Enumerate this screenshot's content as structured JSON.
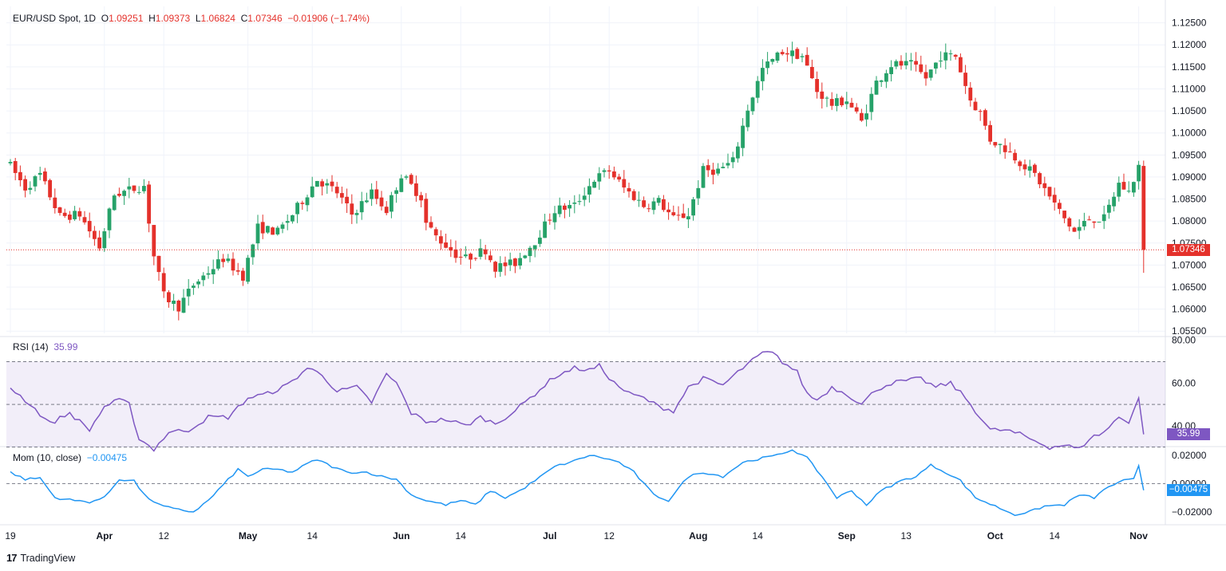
{
  "header": {
    "symbol": "EUR/USD Spot, 1D",
    "o_label": "O",
    "o_value": "1.09251",
    "h_label": "H",
    "h_value": "1.09373",
    "l_label": "L",
    "l_value": "1.06824",
    "c_label": "C",
    "c_value": "1.07346",
    "change": "−0.01906 (−1.74%)"
  },
  "rsi_legend": {
    "label": "RSI (14)",
    "value": "35.99"
  },
  "mom_legend": {
    "label": "Mom (10, close)",
    "value": "−0.00475"
  },
  "badges": {
    "price": "1.07346",
    "rsi": "35.99",
    "mom": "−0.00475"
  },
  "brand": {
    "logo": "17",
    "name": "TradingView"
  },
  "colors": {
    "up": "#26a269",
    "down": "#e4312b",
    "rsi": "#7e57c2",
    "mom": "#2196f3",
    "grid": "#f0f3fa"
  },
  "chart_data": [
    {
      "type": "candlestick",
      "title": "EUR/USD Spot, 1D",
      "x_tick_labels": [
        "19",
        "Apr",
        "12",
        "May",
        "14",
        "Jun",
        "14",
        "Jul",
        "12",
        "Aug",
        "14",
        "Sep",
        "13",
        "Oct",
        "14",
        "Nov"
      ],
      "x_tick_index": [
        0,
        19,
        31,
        48,
        61,
        79,
        91,
        109,
        121,
        139,
        151,
        169,
        181,
        199,
        211,
        228
      ],
      "y_ticks": [
        "1.12500",
        "1.12000",
        "1.11500",
        "1.11000",
        "1.10500",
        "1.10000",
        "1.09500",
        "1.09000",
        "1.08500",
        "1.08000",
        "1.07500",
        "1.07000",
        "1.06500",
        "1.06000",
        "1.05500"
      ],
      "ylim": [
        1.0545,
        1.1262
      ],
      "last_close": 1.07346,
      "waypoints": [
        [
          0,
          1.0925
        ],
        [
          3,
          1.0875
        ],
        [
          6,
          1.0905
        ],
        [
          10,
          1.081
        ],
        [
          14,
          1.0815
        ],
        [
          18,
          1.074
        ],
        [
          21,
          1.086
        ],
        [
          24,
          1.087
        ],
        [
          27,
          1.088
        ],
        [
          29,
          1.072
        ],
        [
          31,
          1.063
        ],
        [
          34,
          1.0605
        ],
        [
          37,
          1.0655
        ],
        [
          40,
          1.0685
        ],
        [
          43,
          1.0715
        ],
        [
          47,
          1.0675
        ],
        [
          50,
          1.0785
        ],
        [
          54,
          1.0775
        ],
        [
          57,
          1.0815
        ],
        [
          62,
          1.0895
        ],
        [
          66,
          1.0865
        ],
        [
          69,
          1.0815
        ],
        [
          73,
          1.0865
        ],
        [
          76,
          1.0825
        ],
        [
          79,
          1.0905
        ],
        [
          83,
          1.0855
        ],
        [
          84,
          1.0795
        ],
        [
          86,
          1.0765
        ],
        [
          90,
          1.0725
        ],
        [
          92,
          1.0715
        ],
        [
          96,
          1.0735
        ],
        [
          98,
          1.0695
        ],
        [
          102,
          1.0705
        ],
        [
          106,
          1.0755
        ],
        [
          110,
          1.0825
        ],
        [
          114,
          1.0835
        ],
        [
          118,
          1.0895
        ],
        [
          121,
          1.0915
        ],
        [
          124,
          1.0875
        ],
        [
          128,
          1.0835
        ],
        [
          131,
          1.0845
        ],
        [
          134,
          1.0805
        ],
        [
          137,
          1.0815
        ],
        [
          140,
          1.0915
        ],
        [
          143,
          1.0915
        ],
        [
          146,
          1.0935
        ],
        [
          149,
          1.1055
        ],
        [
          152,
          1.1145
        ],
        [
          156,
          1.1185
        ],
        [
          160,
          1.1175
        ],
        [
          163,
          1.1095
        ],
        [
          166,
          1.1065
        ],
        [
          169,
          1.1075
        ],
        [
          172,
          1.1025
        ],
        [
          175,
          1.1115
        ],
        [
          178,
          1.1155
        ],
        [
          182,
          1.1155
        ],
        [
          185,
          1.1125
        ],
        [
          188,
          1.1175
        ],
        [
          191,
          1.1175
        ],
        [
          194,
          1.1075
        ],
        [
          196,
          1.1045
        ],
        [
          198,
          1.0985
        ],
        [
          201,
          1.0965
        ],
        [
          204,
          1.0935
        ],
        [
          207,
          1.0905
        ],
        [
          210,
          1.0855
        ],
        [
          213,
          1.0805
        ],
        [
          215,
          1.0775
        ],
        [
          218,
          1.0805
        ],
        [
          221,
          1.0805
        ],
        [
          224,
          1.0885
        ],
        [
          226,
          1.0865
        ],
        [
          228,
          1.0925
        ],
        [
          229,
          1.07346
        ]
      ],
      "notable": {
        "low": 1.06824,
        "high": 1.09373,
        "open": 1.09251,
        "close": 1.07346
      }
    },
    {
      "type": "line",
      "title": "RSI (14)",
      "y_ticks": [
        "80.00",
        "60.00",
        "40.00"
      ],
      "ylim": [
        31,
        81
      ],
      "levels": [
        70,
        50,
        30
      ],
      "last_value": 35.99,
      "waypoints": [
        [
          0,
          58
        ],
        [
          4,
          50
        ],
        [
          8,
          41
        ],
        [
          12,
          46
        ],
        [
          16,
          38
        ],
        [
          19,
          49
        ],
        [
          22,
          52
        ],
        [
          24,
          50
        ],
        [
          26,
          34
        ],
        [
          29,
          29
        ],
        [
          32,
          37
        ],
        [
          36,
          38
        ],
        [
          40,
          44
        ],
        [
          44,
          44
        ],
        [
          48,
          53
        ],
        [
          52,
          55
        ],
        [
          56,
          59
        ],
        [
          60,
          67
        ],
        [
          63,
          64
        ],
        [
          66,
          56
        ],
        [
          70,
          58
        ],
        [
          73,
          51
        ],
        [
          76,
          64
        ],
        [
          78,
          60
        ],
        [
          81,
          46
        ],
        [
          84,
          42
        ],
        [
          88,
          43
        ],
        [
          92,
          40
        ],
        [
          95,
          44
        ],
        [
          98,
          41
        ],
        [
          102,
          47
        ],
        [
          106,
          55
        ],
        [
          110,
          63
        ],
        [
          114,
          67
        ],
        [
          117,
          66
        ],
        [
          119,
          68
        ],
        [
          122,
          60
        ],
        [
          125,
          55
        ],
        [
          128,
          53
        ],
        [
          131,
          49
        ],
        [
          134,
          47
        ],
        [
          137,
          58
        ],
        [
          140,
          62
        ],
        [
          144,
          59
        ],
        [
          148,
          67
        ],
        [
          152,
          74
        ],
        [
          154,
          74
        ],
        [
          156,
          70
        ],
        [
          159,
          65
        ],
        [
          161,
          55
        ],
        [
          163,
          52
        ],
        [
          166,
          58
        ],
        [
          169,
          55
        ],
        [
          172,
          50
        ],
        [
          175,
          57
        ],
        [
          178,
          60
        ],
        [
          181,
          61
        ],
        [
          184,
          62
        ],
        [
          187,
          58
        ],
        [
          190,
          60
        ],
        [
          193,
          53
        ],
        [
          195,
          47
        ],
        [
          198,
          38
        ],
        [
          201,
          38
        ],
        [
          204,
          36
        ],
        [
          207,
          33
        ],
        [
          210,
          30
        ],
        [
          213,
          31
        ],
        [
          216,
          29
        ],
        [
          218,
          34
        ],
        [
          221,
          37
        ],
        [
          224,
          44
        ],
        [
          226,
          42
        ],
        [
          228,
          53
        ],
        [
          229,
          35.99
        ]
      ]
    },
    {
      "type": "line",
      "title": "Mom (10, close)",
      "y_ticks": [
        "0.02000",
        "0.00000",
        "−0.02000"
      ],
      "ylim": [
        -0.028,
        0.025
      ],
      "zero_line": 0,
      "last_value": -0.00475,
      "waypoints": [
        [
          0,
          0.008
        ],
        [
          3,
          0.003
        ],
        [
          6,
          0.004
        ],
        [
          9,
          -0.01
        ],
        [
          13,
          -0.012
        ],
        [
          16,
          -0.013
        ],
        [
          19,
          -0.01
        ],
        [
          22,
          0.003
        ],
        [
          25,
          0.002
        ],
        [
          27,
          -0.008
        ],
        [
          30,
          -0.015
        ],
        [
          33,
          -0.018
        ],
        [
          37,
          -0.02
        ],
        [
          40,
          -0.012
        ],
        [
          43,
          -0.001
        ],
        [
          46,
          0.01
        ],
        [
          48,
          0.005
        ],
        [
          51,
          0.01
        ],
        [
          54,
          0.01
        ],
        [
          57,
          0.008
        ],
        [
          60,
          0.014
        ],
        [
          62,
          0.017
        ],
        [
          65,
          0.012
        ],
        [
          68,
          0.008
        ],
        [
          72,
          0.008
        ],
        [
          75,
          0.005
        ],
        [
          78,
          0.003
        ],
        [
          81,
          -0.008
        ],
        [
          84,
          -0.012
        ],
        [
          88,
          -0.015
        ],
        [
          91,
          -0.012
        ],
        [
          94,
          -0.015
        ],
        [
          97,
          -0.005
        ],
        [
          100,
          -0.01
        ],
        [
          103,
          -0.005
        ],
        [
          106,
          0.002
        ],
        [
          110,
          0.012
        ],
        [
          114,
          0.016
        ],
        [
          117,
          0.02
        ],
        [
          120,
          0.018
        ],
        [
          123,
          0.015
        ],
        [
          126,
          0.008
        ],
        [
          130,
          -0.008
        ],
        [
          133,
          -0.012
        ],
        [
          137,
          0.005
        ],
        [
          140,
          0.008
        ],
        [
          144,
          0.005
        ],
        [
          148,
          0.015
        ],
        [
          152,
          0.018
        ],
        [
          155,
          0.02
        ],
        [
          158,
          0.024
        ],
        [
          161,
          0.018
        ],
        [
          164,
          0.005
        ],
        [
          167,
          -0.01
        ],
        [
          170,
          -0.005
        ],
        [
          173,
          -0.015
        ],
        [
          176,
          -0.005
        ],
        [
          180,
          0.002
        ],
        [
          183,
          0.005
        ],
        [
          186,
          0.013
        ],
        [
          189,
          0.008
        ],
        [
          192,
          0.002
        ],
        [
          195,
          -0.01
        ],
        [
          199,
          -0.016
        ],
        [
          203,
          -0.022
        ],
        [
          206,
          -0.02
        ],
        [
          209,
          -0.016
        ],
        [
          213,
          -0.015
        ],
        [
          216,
          -0.008
        ],
        [
          219,
          -0.01
        ],
        [
          222,
          -0.002
        ],
        [
          225,
          0.002
        ],
        [
          227,
          0.003
        ],
        [
          228,
          0.012
        ],
        [
          229,
          -0.00475
        ]
      ]
    }
  ]
}
